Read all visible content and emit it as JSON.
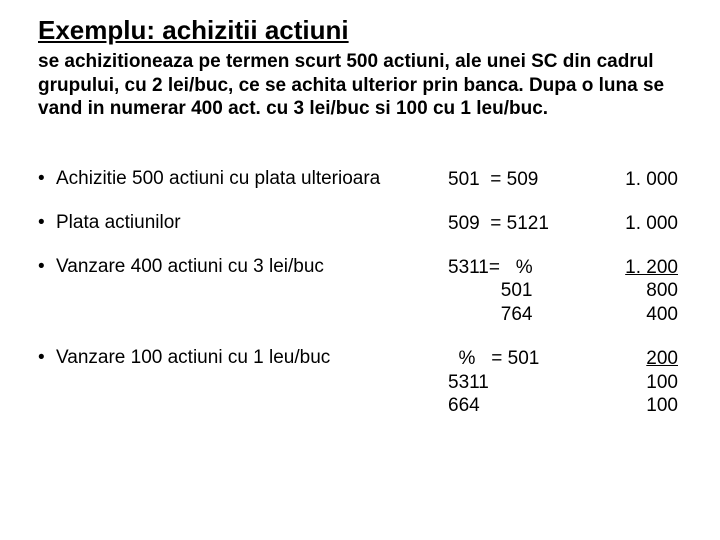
{
  "header": {
    "title": "Exemplu: achizitii actiuni",
    "subtitle": "se achizitioneaza pe termen scurt 500 actiuni, ale unei SC din cadrul grupului, cu 2 lei/buc, ce se achita ulterior prin banca. Dupa o luna se vand in numerar 400 act. cu 3 lei/buc si 100 cu 1 leu/buc."
  },
  "rows": [
    {
      "desc": "Achizitie 500 actiuni cu plata ulterioara",
      "acct": "501  = 509",
      "amt": "1. 000"
    },
    {
      "desc": "Plata actiunilor",
      "acct": "509  = 5121",
      "amt": "1. 000"
    },
    {
      "desc": "Vanzare 400 actiuni cu 3 lei/buc",
      "acct": "5311=   %\n          501\n          764",
      "amt_top": "1. 200",
      "amt_rest": "800\n400"
    },
    {
      "desc": "Vanzare 100 actiuni cu 1 leu/buc",
      "acct": "  %   = 501\n5311\n664",
      "amt_top": "200",
      "amt_rest": "100\n100"
    }
  ],
  "style": {
    "bg": "#ffffff",
    "text": "#000000",
    "title_fontsize": 26,
    "subtitle_fontsize": 19,
    "body_fontsize": 19
  }
}
